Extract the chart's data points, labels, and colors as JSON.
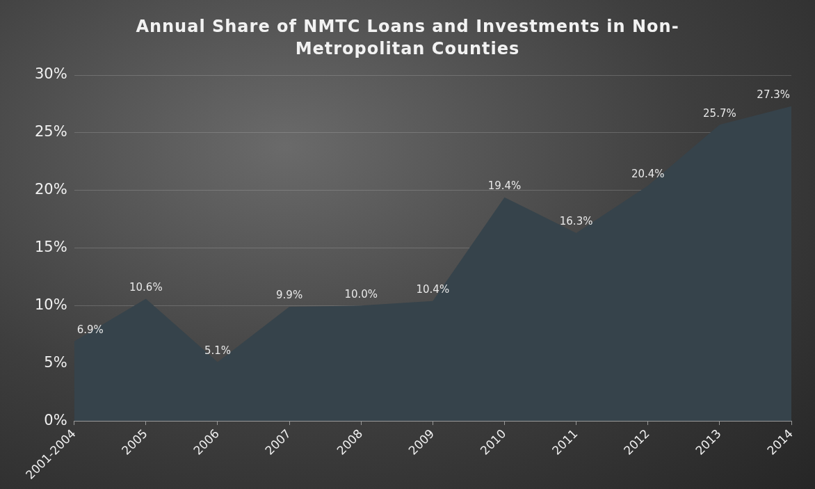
{
  "chart_data": {
    "type": "area",
    "title": "Annual Share of NMTC Loans and Investments in Non-Metropolitan Counties",
    "categories": [
      "2001-2004",
      "2005",
      "2006",
      "2007",
      "2008",
      "2009",
      "2010",
      "2011",
      "2012",
      "2013",
      "2014"
    ],
    "values": [
      6.9,
      10.6,
      5.1,
      9.9,
      10.0,
      10.4,
      19.4,
      16.3,
      20.4,
      25.7,
      27.3
    ],
    "value_labels": [
      "6.9%",
      "10.6%",
      "5.1%",
      "9.9%",
      "10.0%",
      "10.4%",
      "19.4%",
      "16.3%",
      "20.4%",
      "25.7%",
      "27.3%"
    ],
    "color": "#36434b",
    "ylim": [
      0,
      30
    ],
    "yticks": [
      {
        "value": 0,
        "label": "0%"
      },
      {
        "value": 5,
        "label": "5%"
      },
      {
        "value": 10,
        "label": "10%"
      },
      {
        "value": 15,
        "label": "15%"
      },
      {
        "value": 20,
        "label": "20%"
      },
      {
        "value": 25,
        "label": "25%"
      },
      {
        "value": 30,
        "label": "30%"
      }
    ],
    "grid": "y"
  }
}
